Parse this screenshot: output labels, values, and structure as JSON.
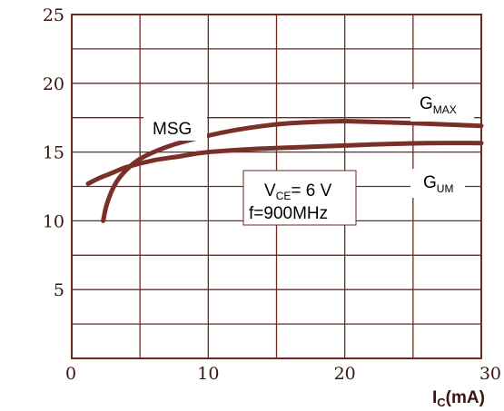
{
  "chart_data": {
    "type": "line",
    "title": "",
    "xlabel_main": "I",
    "xlabel_sub": "C",
    "xlabel_unit": "(mA)",
    "ylabel": "",
    "xlim": [
      0,
      30
    ],
    "ylim": [
      0,
      25
    ],
    "grid": true,
    "x_ticks": [
      0,
      5,
      10,
      15,
      20,
      25,
      30
    ],
    "y_ticks": [
      0,
      2.5,
      5,
      7.5,
      10,
      12.5,
      15,
      17.5,
      20,
      22.5,
      25
    ],
    "x_tick_labels": [
      {
        "value": 0,
        "label": "0"
      },
      {
        "value": 10,
        "label": "10"
      },
      {
        "value": 20,
        "label": "20"
      },
      {
        "value": 30,
        "label": "30"
      }
    ],
    "y_tick_labels": [
      {
        "value": 5,
        "label": "5"
      },
      {
        "value": 10,
        "label": "10"
      },
      {
        "value": 15,
        "label": "15"
      },
      {
        "value": 20,
        "label": "20"
      },
      {
        "value": 25,
        "label": "25"
      }
    ],
    "series": [
      {
        "name": "MSG",
        "x": [
          2.3,
          2.6,
          3.2,
          4.0,
          5.0,
          6.5,
          8.0,
          10.0,
          12.0,
          14.0,
          16.0,
          18.0,
          20.0
        ],
        "y": [
          10.0,
          11.3,
          12.7,
          13.7,
          14.5,
          15.2,
          15.7,
          16.2,
          16.6,
          16.9,
          17.1,
          17.2,
          17.25
        ]
      },
      {
        "name": "GMAX",
        "x": [
          20.0,
          25.0,
          30.0
        ],
        "y": [
          17.25,
          17.1,
          16.9
        ]
      },
      {
        "name": "GUM",
        "x": [
          1.2,
          2.0,
          3.0,
          4.0,
          6.0,
          8.0,
          10.0,
          14.0,
          18.0,
          22.0,
          26.0,
          30.0
        ],
        "y": [
          12.7,
          13.1,
          13.5,
          13.9,
          14.4,
          14.7,
          15.0,
          15.25,
          15.4,
          15.55,
          15.65,
          15.65
        ]
      }
    ],
    "colors": {
      "curve": "#7a3028",
      "grid": "#6b2a22",
      "background": "#ffffff"
    }
  },
  "labels": {
    "msg": "MSG",
    "gmax_main": "G",
    "gmax_sub": "MAX",
    "gum_main": "G",
    "gum_sub": "UM",
    "cond_v_main": "V",
    "cond_v_sub": "CE",
    "cond_v_value": "= 6  V",
    "cond_f": "f=900MHz"
  }
}
